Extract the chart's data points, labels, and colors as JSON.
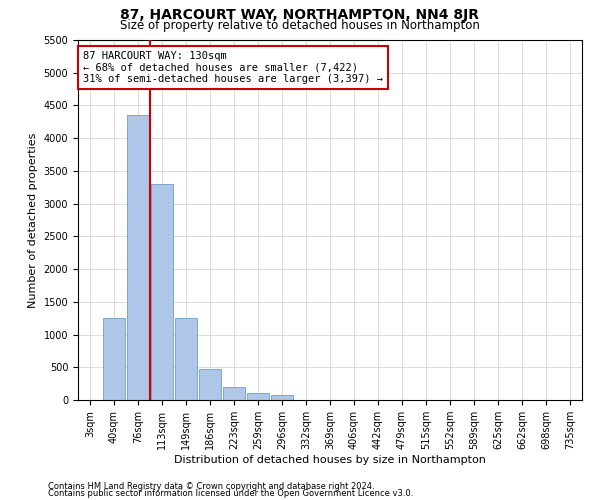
{
  "title": "87, HARCOURT WAY, NORTHAMPTON, NN4 8JR",
  "subtitle": "Size of property relative to detached houses in Northampton",
  "xlabel": "Distribution of detached houses by size in Northampton",
  "ylabel": "Number of detached properties",
  "footnote1": "Contains HM Land Registry data © Crown copyright and database right 2024.",
  "footnote2": "Contains public sector information licensed under the Open Government Licence v3.0.",
  "categories": [
    "3sqm",
    "40sqm",
    "76sqm",
    "113sqm",
    "149sqm",
    "186sqm",
    "223sqm",
    "259sqm",
    "296sqm",
    "332sqm",
    "369sqm",
    "406sqm",
    "442sqm",
    "479sqm",
    "515sqm",
    "552sqm",
    "589sqm",
    "625sqm",
    "662sqm",
    "698sqm",
    "735sqm"
  ],
  "values": [
    0,
    1250,
    4350,
    3300,
    1250,
    480,
    200,
    100,
    70,
    0,
    0,
    0,
    0,
    0,
    0,
    0,
    0,
    0,
    0,
    0,
    0
  ],
  "ylim": [
    0,
    5500
  ],
  "yticks": [
    0,
    500,
    1000,
    1500,
    2000,
    2500,
    3000,
    3500,
    4000,
    4500,
    5000,
    5500
  ],
  "bar_color": "#aec6e8",
  "bar_edge_color": "#5a8fc3",
  "vline_x_index": 2.5,
  "vline_color": "#cc0000",
  "annotation_text": "87 HARCOURT WAY: 130sqm\n← 68% of detached houses are smaller (7,422)\n31% of semi-detached houses are larger (3,397) →",
  "annotation_box_color": "#ffffff",
  "annotation_box_edge": "#cc0000",
  "bg_color": "#ffffff",
  "grid_color": "#cccccc",
  "title_fontsize": 10,
  "subtitle_fontsize": 8.5,
  "axis_label_fontsize": 8,
  "tick_fontsize": 7,
  "annot_fontsize": 7.5,
  "footnote_fontsize": 6
}
